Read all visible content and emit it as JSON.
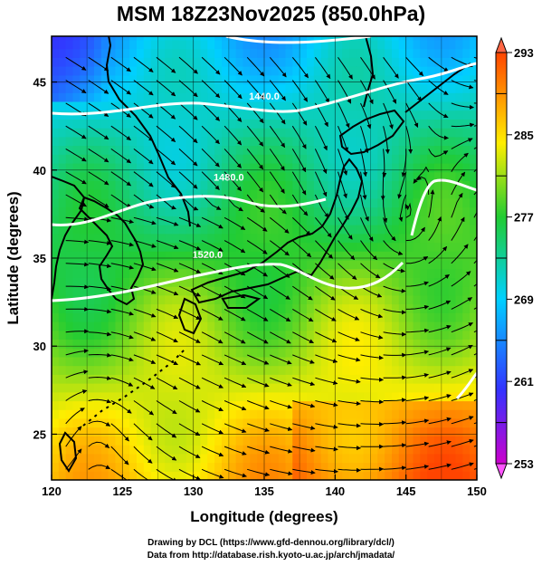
{
  "title": "MSM 18Z23Nov2025 (850.0hPa)",
  "map": {
    "lon_range": [
      120,
      150
    ],
    "lat_range": [
      22.4,
      47.6
    ],
    "x_ticks": [
      120,
      125,
      130,
      135,
      140,
      145,
      150
    ],
    "x_tick_labels": [
      "120",
      "125",
      "130",
      "135",
      "140",
      "145",
      "150"
    ],
    "y_ticks": [
      25,
      30,
      35,
      40,
      45
    ],
    "y_tick_labels": [
      "25",
      "30",
      "35",
      "40",
      "45"
    ],
    "xlabel": "Longitude (degrees)",
    "ylabel": "Latitude  (degrees)",
    "grid": true
  },
  "colorbar": {
    "min": 253,
    "max": 293,
    "tick_values": [
      293,
      285,
      277,
      269,
      261,
      253
    ],
    "tick_labels": [
      "293",
      "285",
      "277",
      "269",
      "261",
      "253"
    ],
    "colors": [
      "#cc00cc",
      "#3333ff",
      "#00d0ff",
      "#22cc33",
      "#ffee00",
      "#ff4400"
    ]
  },
  "contours": [
    {
      "label": "1440.0",
      "lon": 135.0,
      "lat": 44.0
    },
    {
      "label": "1480.0",
      "lon": 132.5,
      "lat": 39.4
    },
    {
      "label": "1520.0",
      "lon": 131.0,
      "lat": 35.0
    }
  ],
  "credits": {
    "line1": "Drawing by DCL (https://www.gfd-dennou.org/library/dcl/)",
    "line2": "Data from http://database.rish.kyoto-u.ac.jp/arch/jmadata/"
  }
}
